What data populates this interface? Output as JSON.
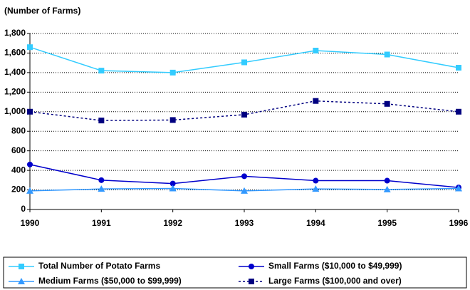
{
  "chart_data": {
    "type": "line",
    "y_label": "(Number of Farms)",
    "x": [
      1990,
      1991,
      1992,
      1993,
      1994,
      1995,
      1996
    ],
    "xlim": [
      1990,
      1996
    ],
    "xticks": [
      1990,
      1991,
      1992,
      1993,
      1994,
      1995,
      1996
    ],
    "ylim": [
      0,
      1800
    ],
    "yticks": [
      0,
      200,
      400,
      600,
      800,
      {
        "value": 1000,
        "label": "1,000"
      },
      {
        "value": 1200,
        "label": "1,200"
      },
      {
        "value": 1400,
        "label": "1,400"
      },
      {
        "value": 1600,
        "label": "1,600"
      },
      {
        "value": 1800,
        "label": "1,800"
      }
    ],
    "grid": true,
    "legend": "bottom",
    "series": [
      {
        "name": "Total Number of Potato Farms",
        "color": "#33ccff",
        "marker": "square",
        "line_style": "solid",
        "values": [
          1660,
          1420,
          1400,
          1505,
          1625,
          1585,
          1450
        ]
      },
      {
        "name": "Small Farms ($10,000 to $49,999)",
        "color": "#0000cc",
        "marker": "circle",
        "line_style": "solid",
        "values": [
          460,
          300,
          265,
          340,
          295,
          295,
          225
        ]
      },
      {
        "name": "Medium Farms ($50,000 to $99,999)",
        "color": "#3399ff",
        "marker": "triangle",
        "line_style": "solid",
        "values": [
          190,
          210,
          215,
          190,
          210,
          205,
          215
        ]
      },
      {
        "name": "Large Farms ($100,000 and over)",
        "color": "#000080",
        "marker": "square",
        "line_style": "dashed",
        "values": [
          1000,
          910,
          915,
          970,
          1110,
          1080,
          1000
        ]
      }
    ]
  }
}
